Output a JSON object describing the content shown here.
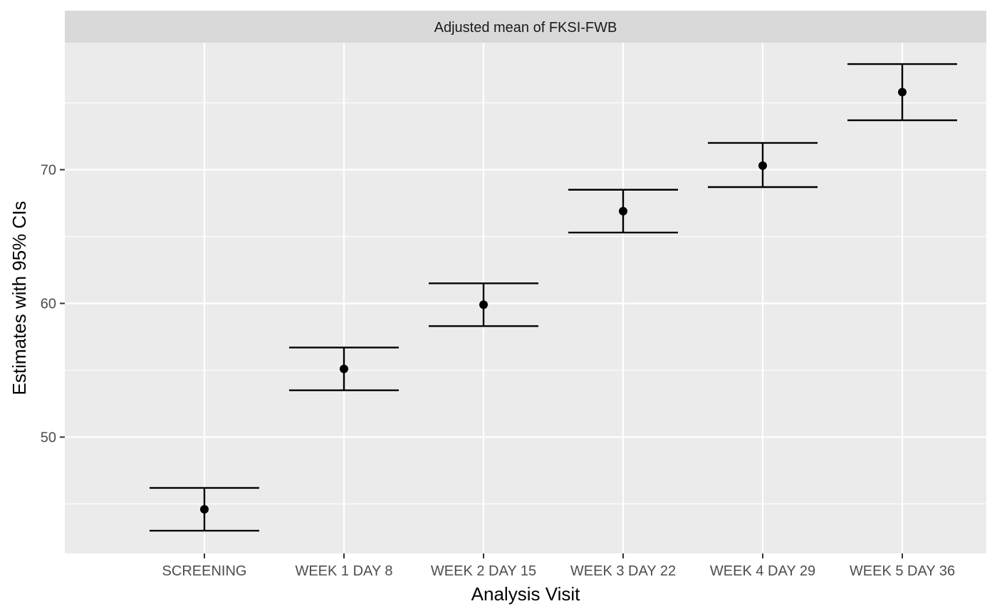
{
  "chart_data": {
    "type": "errorbar",
    "title": "Adjusted mean of FKSI-FWB",
    "xlabel": "Analysis Visit",
    "ylabel": "Estimates with 95% CIs",
    "categories": [
      "SCREENING",
      "WEEK 1 DAY 8",
      "WEEK 2 DAY 15",
      "WEEK 3 DAY 22",
      "WEEK 4 DAY 29",
      "WEEK 5 DAY 36"
    ],
    "series": [
      {
        "estimate": [
          44.6,
          55.1,
          59.9,
          66.9,
          70.3,
          75.8
        ],
        "lower": [
          43.0,
          53.5,
          58.3,
          65.3,
          68.7,
          73.7
        ],
        "upper": [
          46.2,
          56.7,
          61.5,
          68.5,
          72.0,
          77.9
        ]
      }
    ],
    "ylim": [
      41.3,
      79.5
    ],
    "yticks": [
      50,
      60,
      70
    ],
    "grid": true,
    "colors": {
      "panel_bg": "#ebebeb",
      "strip_bg": "#d9d9d9",
      "grid": "#ffffff",
      "marks": "#000000"
    }
  }
}
